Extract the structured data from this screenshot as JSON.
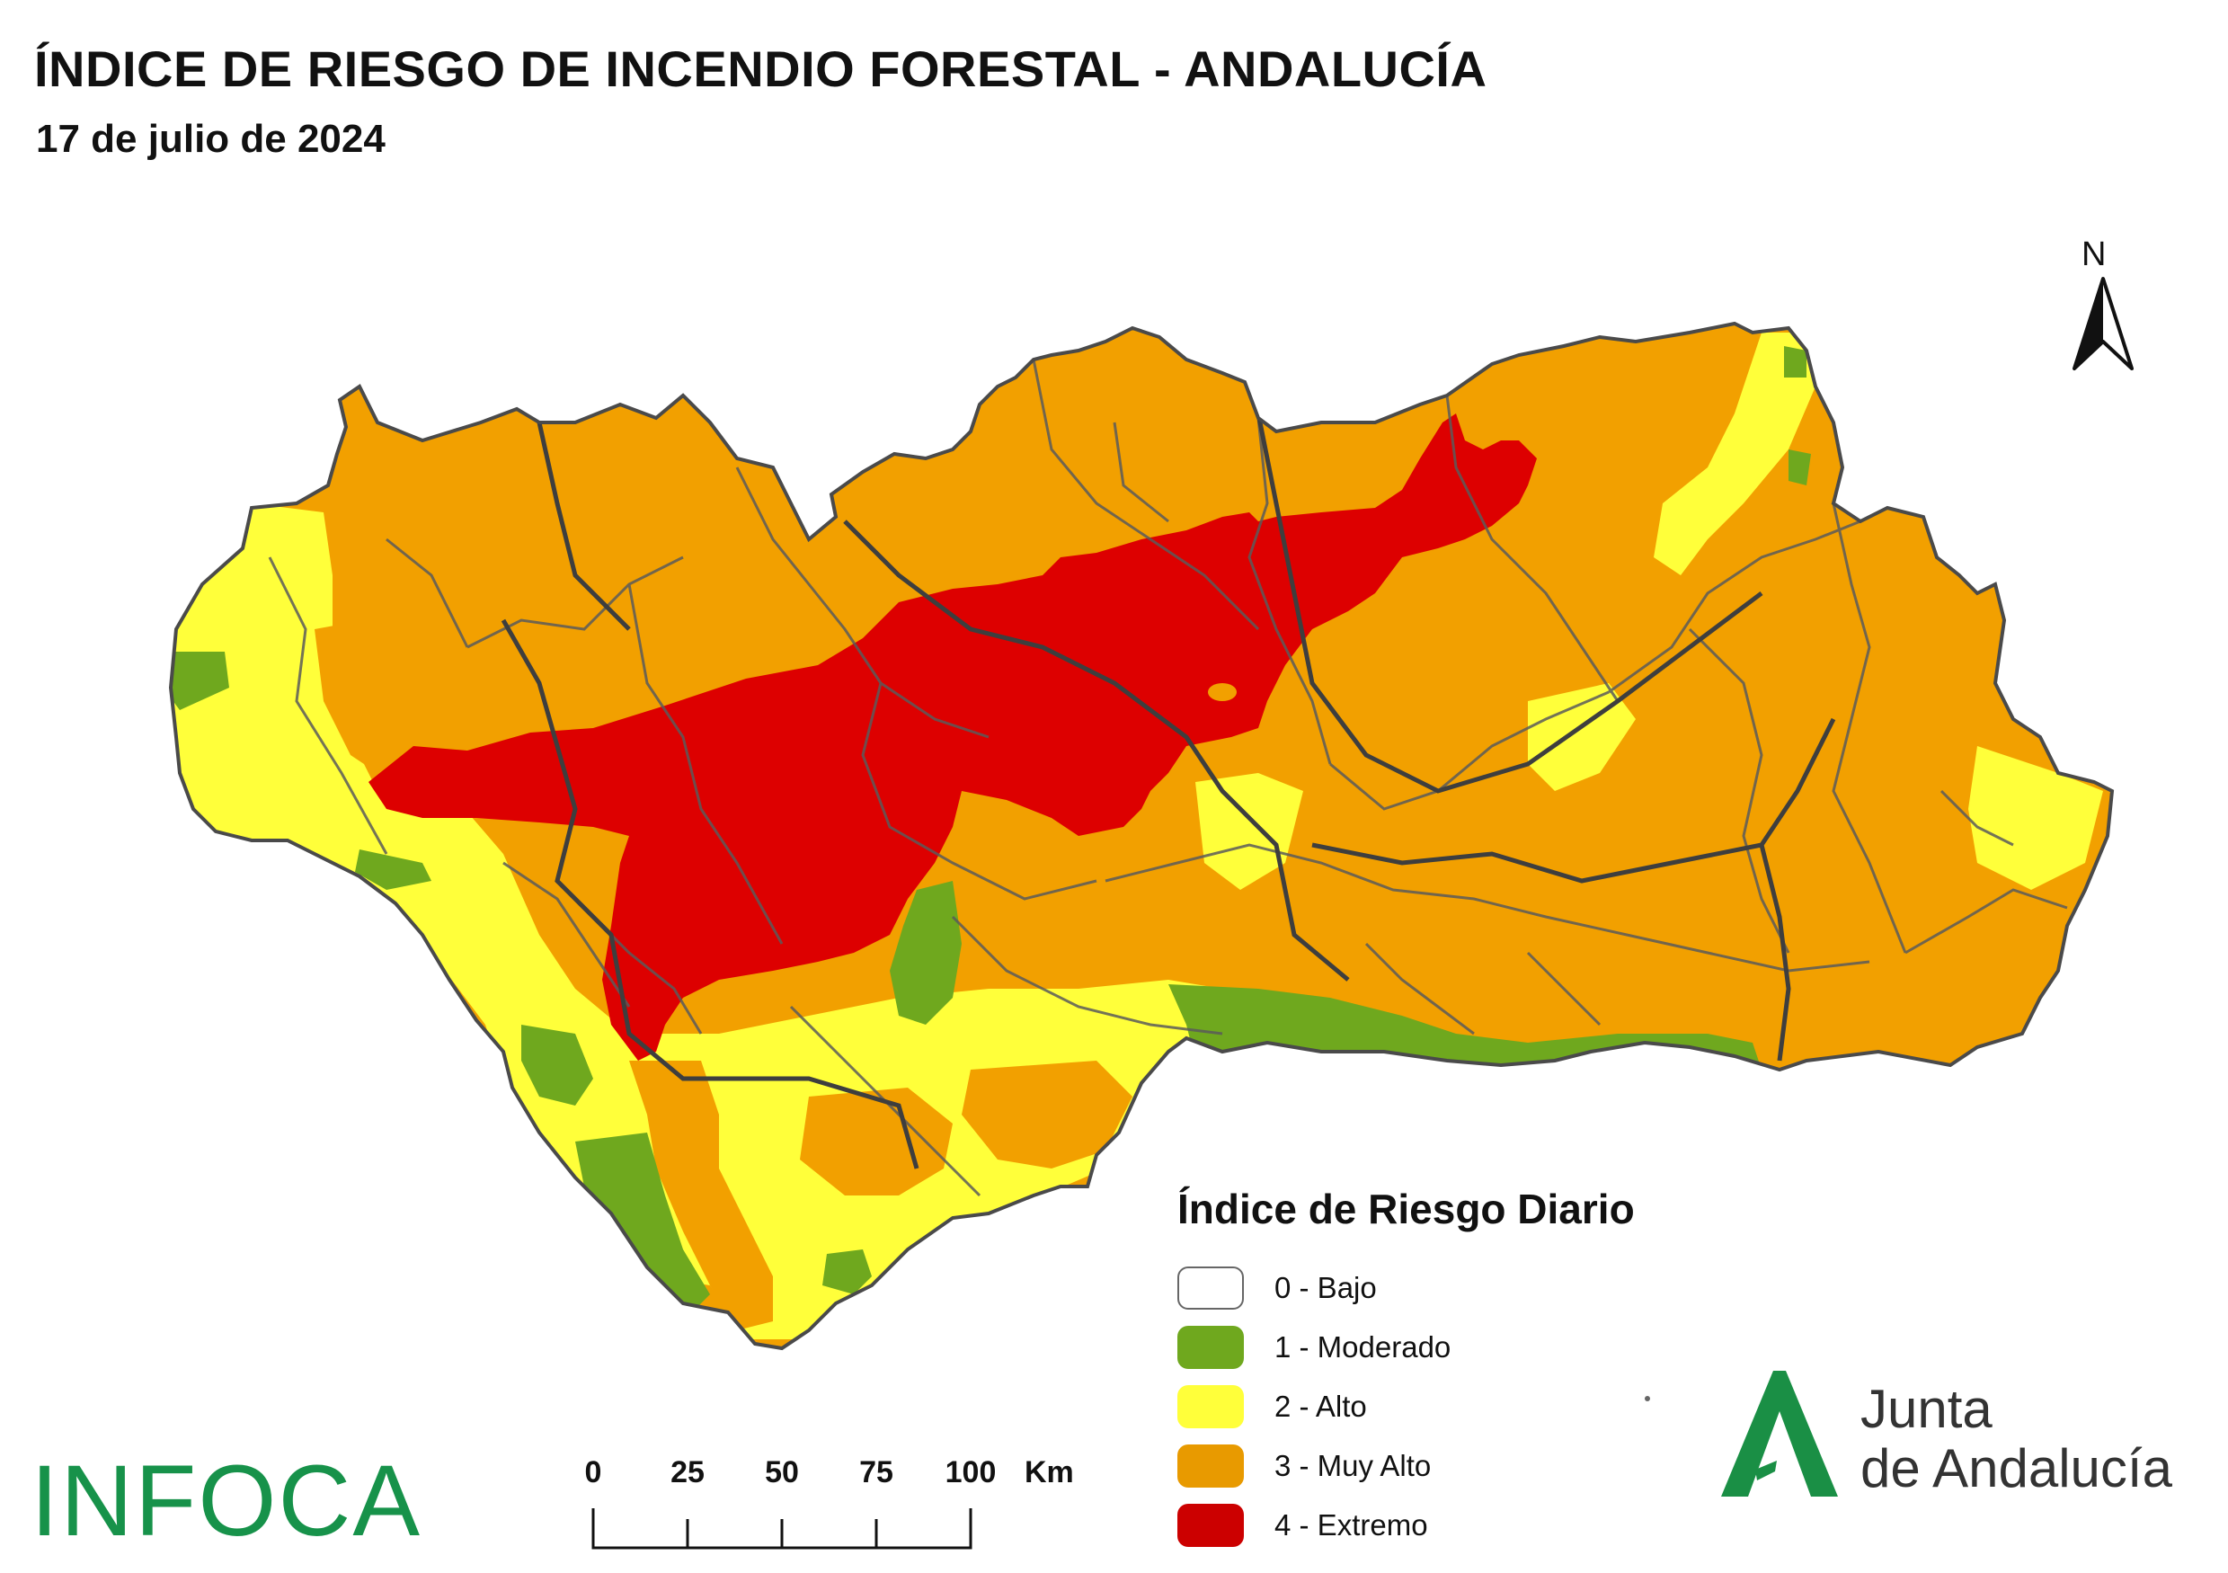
{
  "header": {
    "title": "ÍNDICE DE RIESGO DE INCENDIO FORESTAL - ANDALUCÍA",
    "date": "17 de julio de 2024"
  },
  "north_arrow": {
    "label": "N"
  },
  "legend": {
    "title": "Índice de Riesgo Diario",
    "items": [
      {
        "label": "0 - Bajo",
        "color": "#ffffff"
      },
      {
        "label": "1 - Moderado",
        "color": "#6fa81e"
      },
      {
        "label": "2 - Alto",
        "color": "#ffff3a"
      },
      {
        "label": "3 - Muy Alto",
        "color": "#f2a000"
      },
      {
        "label": "4 - Extremo",
        "color": "#dd0000"
      }
    ]
  },
  "scale_bar": {
    "ticks": [
      "0",
      "25",
      "50",
      "75",
      "100"
    ],
    "unit": "Km"
  },
  "logos": {
    "infoca": "INFOCA",
    "junta_line1": "Junta",
    "junta_line2": "de Andalucía"
  },
  "colors": {
    "muy_alto": "#f2a000",
    "extremo": "#dd0000",
    "alto": "#ffff3a",
    "moderado": "#6fa81e",
    "boundary": "#555555",
    "infoca_green": "#17924a"
  }
}
